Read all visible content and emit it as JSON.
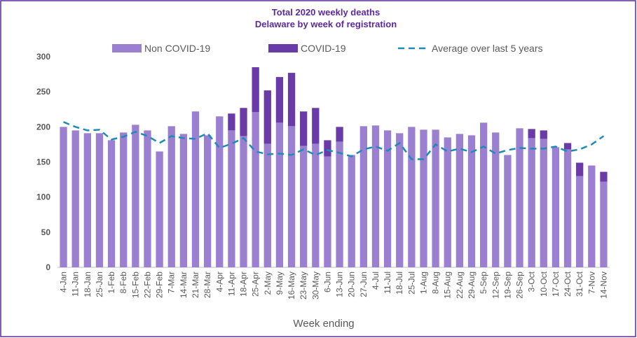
{
  "chart_data": {
    "type": "bar",
    "title": "Total 2020 weekly deaths",
    "subtitle": "Delaware by week of registration",
    "x_label": "Week ending",
    "categories": [
      "4-Jan",
      "11-Jan",
      "18-Jan",
      "25-Jan",
      "1-Feb",
      "8-Feb",
      "15-Feb",
      "22-Feb",
      "29-Feb",
      "7-Mar",
      "14-Mar",
      "21-Mar",
      "28-Mar",
      "4-Apr",
      "11-Apr",
      "18-Apr",
      "25-Apr",
      "2-May",
      "9-May",
      "16-May",
      "23-May",
      "30-May",
      "6-Jun",
      "13-Jun",
      "20-Jun",
      "27-Jun",
      "4-Jul",
      "11-Jul",
      "18-Jul",
      "25-Jul",
      "1-Aug",
      "8-Aug",
      "15-Aug",
      "22-Aug",
      "29-Aug",
      "5-Sep",
      "12-Sep",
      "19-Sep",
      "26-Sep",
      "3-Oct",
      "10-Oct",
      "17-Oct",
      "24-Oct",
      "31-Oct",
      "7-Nov",
      "14-Nov"
    ],
    "series": [
      {
        "name": "Non COVID-19",
        "color": "#9b7fd0",
        "stacked": true,
        "values": [
          200,
          195,
          191,
          191,
          181,
          192,
          203,
          195,
          165,
          201,
          190,
          222,
          188,
          215,
          195,
          187,
          221,
          176,
          206,
          201,
          173,
          176,
          158,
          179,
          160,
          201,
          202,
          195,
          191,
          200,
          196,
          196,
          185,
          190,
          188,
          206,
          192,
          160,
          198,
          184,
          183,
          171,
          168,
          130,
          145,
          122
        ]
      },
      {
        "name": "COVID-19",
        "color": "#6a3aa8",
        "stacked": true,
        "values": [
          0,
          0,
          0,
          0,
          0,
          0,
          0,
          0,
          0,
          0,
          0,
          0,
          0,
          0,
          24,
          40,
          64,
          76,
          65,
          76,
          49,
          51,
          23,
          21,
          0,
          0,
          0,
          0,
          0,
          0,
          0,
          0,
          0,
          0,
          0,
          0,
          0,
          0,
          0,
          13,
          12,
          0,
          9,
          19,
          0,
          14
        ]
      },
      {
        "name": "Average over last 5 years",
        "color": "#1f8ab8",
        "type": "line",
        "dashed": true,
        "values": [
          207,
          200,
          195,
          196,
          182,
          186,
          193,
          187,
          177,
          187,
          184,
          183,
          191,
          170,
          176,
          184,
          165,
          161,
          162,
          160,
          168,
          160,
          167,
          163,
          158,
          168,
          172,
          166,
          177,
          154,
          154,
          175,
          165,
          169,
          164,
          172,
          162,
          167,
          170,
          169,
          169,
          172,
          165,
          168,
          175,
          187
        ]
      }
    ],
    "ylim": [
      0,
      300
    ],
    "yticks": [
      0,
      50,
      100,
      150,
      200,
      250,
      300
    ],
    "grid": false,
    "legend": "top"
  }
}
